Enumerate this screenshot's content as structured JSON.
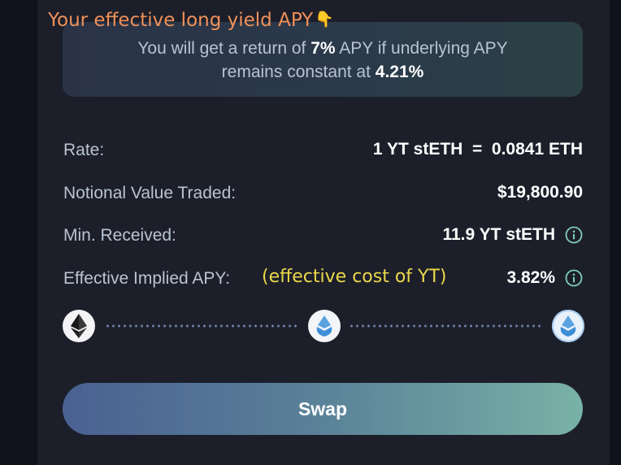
{
  "annotations": {
    "top": "Your effective long yield APY",
    "top_emoji": "👇",
    "cost": "(effective cost of YT)"
  },
  "info": {
    "line1_prefix": "You will get a return of ",
    "line1_rate": "7%",
    "line1_suffix": " APY if underlying APY",
    "line2_prefix": "remains constant at ",
    "line2_rate": "4.21%"
  },
  "details": {
    "rate": {
      "label": "Rate:",
      "value": "1 YT stETH  =  0.0841 ETH"
    },
    "notional": {
      "label": "Notional Value Traded:",
      "value": "$19,800.90"
    },
    "min_received": {
      "label": "Min. Received:",
      "value": "11.9 YT stETH"
    },
    "implied_apy": {
      "label": "Effective Implied APY:",
      "value": "3.82%"
    }
  },
  "route": {
    "tokens": [
      "ethereum-icon",
      "lido-steth-icon",
      "yt-steth-icon"
    ]
  },
  "swap_button": {
    "label": "Swap"
  },
  "colors": {
    "accent_orange": "#f0915a",
    "accent_yellow": "#ecd84a",
    "button_start": "#4a6192",
    "button_end": "#79b2a7",
    "info_icon": "#7fcfbe"
  }
}
